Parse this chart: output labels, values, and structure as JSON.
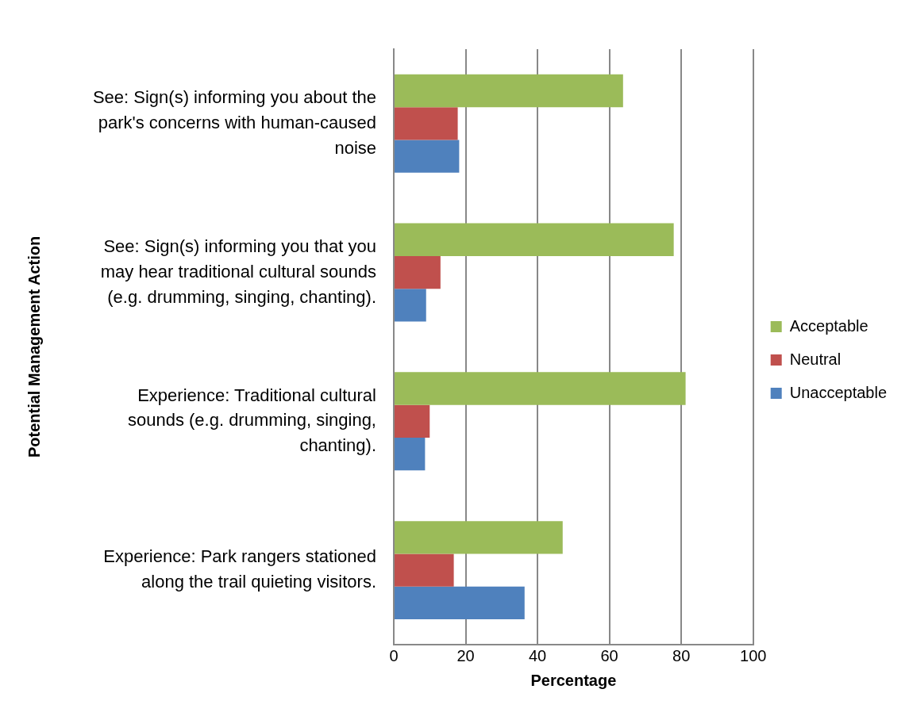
{
  "chart_data": {
    "type": "bar",
    "orientation": "horizontal",
    "xlabel": "Percentage",
    "ylabel": "Potential Management Action",
    "categories": [
      "See: Sign(s) informing you about the park's concerns with human-caused noise",
      "See: Sign(s) informing you that you may hear traditional cultural sounds (e.g. drumming, singing, chanting).",
      "Experience: Traditional cultural sounds (e.g. drumming, singing, chanting).",
      "Experience: Park rangers stationed along the trail quieting visitors."
    ],
    "series": [
      {
        "name": "Acceptable",
        "color": "#9bbb59",
        "values": [
          63.8,
          77.9,
          81.2,
          47.0
        ]
      },
      {
        "name": "Neutral",
        "color": "#c0504d",
        "values": [
          17.8,
          13.0,
          10.0,
          16.7
        ]
      },
      {
        "name": "Unacceptable",
        "color": "#4f81bd",
        "values": [
          18.2,
          9.0,
          8.7,
          36.4
        ]
      }
    ],
    "xlim": [
      0,
      100
    ],
    "xticks": [
      0,
      20,
      40,
      60,
      80,
      100
    ],
    "grid": "x",
    "legend": "right"
  }
}
